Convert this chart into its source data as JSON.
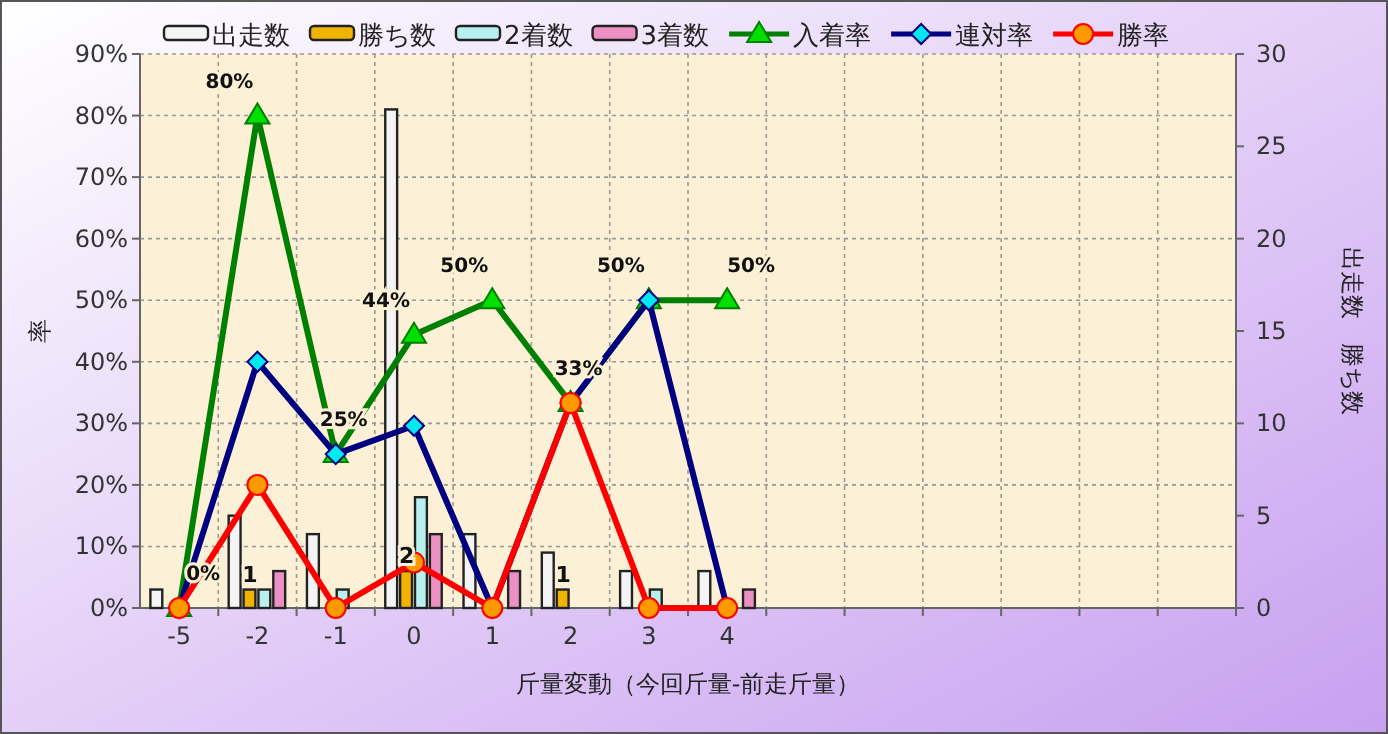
{
  "chart_data": {
    "type": "bar",
    "ylabel": "率",
    "y2label": "出走数　勝ち数",
    "xlabel": "斤量変動（今回斤量-前走斤量）",
    "categories": [
      "-5",
      "-2",
      "-1",
      "0",
      "1",
      "2",
      "3",
      "4",
      null,
      null,
      null,
      null,
      null,
      null
    ],
    "ylim": [
      0,
      90
    ],
    "yticks": [
      {
        "value": 0,
        "label": "0%"
      },
      {
        "value": 10,
        "label": "10%"
      },
      {
        "value": 20,
        "label": "20%"
      },
      {
        "value": 30,
        "label": "30%"
      },
      {
        "value": 40,
        "label": "40%"
      },
      {
        "value": 50,
        "label": "50%"
      },
      {
        "value": 60,
        "label": "60%"
      },
      {
        "value": 70,
        "label": "70%"
      },
      {
        "value": 80,
        "label": "80%"
      },
      {
        "value": 90,
        "label": "90%"
      }
    ],
    "y2lim": [
      0,
      30
    ],
    "y2ticks": [
      0,
      5,
      10,
      15,
      20,
      25,
      30
    ],
    "grid": true,
    "legend": "top",
    "series": [
      {
        "name": "出走数",
        "type": "bar",
        "axis": "y2",
        "color": "#f4f4f4",
        "values": [
          1,
          5,
          4,
          27,
          4,
          3,
          2,
          2,
          null,
          null,
          null,
          null,
          null,
          null
        ]
      },
      {
        "name": "勝ち数",
        "type": "bar",
        "axis": "y2",
        "color": "#f0b400",
        "values": [
          0,
          1,
          0,
          2,
          0,
          1,
          0,
          0,
          null,
          null,
          null,
          null,
          null,
          null
        ],
        "value_labels": [
          null,
          "1",
          null,
          "2",
          null,
          "1",
          null,
          null,
          null,
          null,
          null,
          null,
          null,
          null
        ]
      },
      {
        "name": "2着数",
        "type": "bar",
        "axis": "y2",
        "color": "#b8f0f0",
        "values": [
          0,
          1,
          1,
          6,
          0,
          0,
          1,
          0,
          null,
          null,
          null,
          null,
          null,
          null
        ]
      },
      {
        "name": "3着数",
        "type": "bar",
        "axis": "y2",
        "color": "#ec90c4",
        "values": [
          0,
          2,
          0,
          4,
          2,
          0,
          0,
          1,
          null,
          null,
          null,
          null,
          null,
          null
        ]
      },
      {
        "name": "入着率",
        "type": "line",
        "marker": "triangle",
        "color": "#008000",
        "values": [
          0,
          80,
          25,
          44.4,
          50,
          33.3,
          50,
          50,
          null,
          null,
          null,
          null,
          null,
          null
        ],
        "value_labels": [
          "0%",
          "80%",
          "25%",
          "44%",
          "50%",
          "33%",
          "50%",
          "50%",
          null,
          null,
          null,
          null,
          null,
          null
        ]
      },
      {
        "name": "連対率",
        "type": "line",
        "marker": "diamond",
        "color": "#000080",
        "values": [
          0,
          40,
          25,
          29.6,
          0,
          33.3,
          50,
          0,
          null,
          null,
          null,
          null,
          null,
          null
        ]
      },
      {
        "name": "勝率",
        "type": "line",
        "marker": "circle",
        "color": "#ff0000",
        "values": [
          0,
          20,
          0,
          7.4,
          0,
          33.3,
          0,
          0,
          null,
          null,
          null,
          null,
          null,
          null
        ]
      }
    ]
  }
}
